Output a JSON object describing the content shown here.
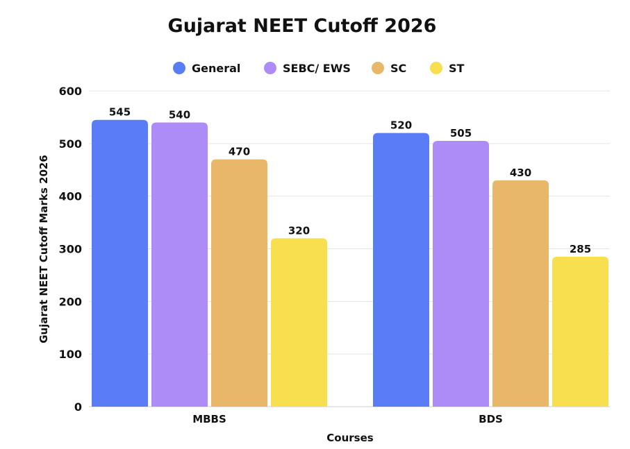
{
  "chart_data": {
    "type": "bar",
    "title": "Gujarat NEET Cutoff 2026",
    "xlabel": "Courses",
    "ylabel": "Gujarat NEET Cutoff Marks 2026",
    "categories": [
      "MBBS",
      "BDS"
    ],
    "ylim": [
      0,
      600
    ],
    "yticks": [
      0,
      100,
      200,
      300,
      400,
      500,
      600
    ],
    "grid": true,
    "legend_position": "top",
    "series": [
      {
        "name": "General",
        "color": "#5b7cf7",
        "values": [
          545,
          520
        ]
      },
      {
        "name": "SEBC/ EWS",
        "color": "#ae8cf7",
        "values": [
          540,
          505
        ]
      },
      {
        "name": "SC",
        "color": "#e9b76a",
        "values": [
          470,
          430
        ]
      },
      {
        "name": "ST",
        "color": "#f8df50",
        "values": [
          320,
          285
        ]
      }
    ]
  }
}
